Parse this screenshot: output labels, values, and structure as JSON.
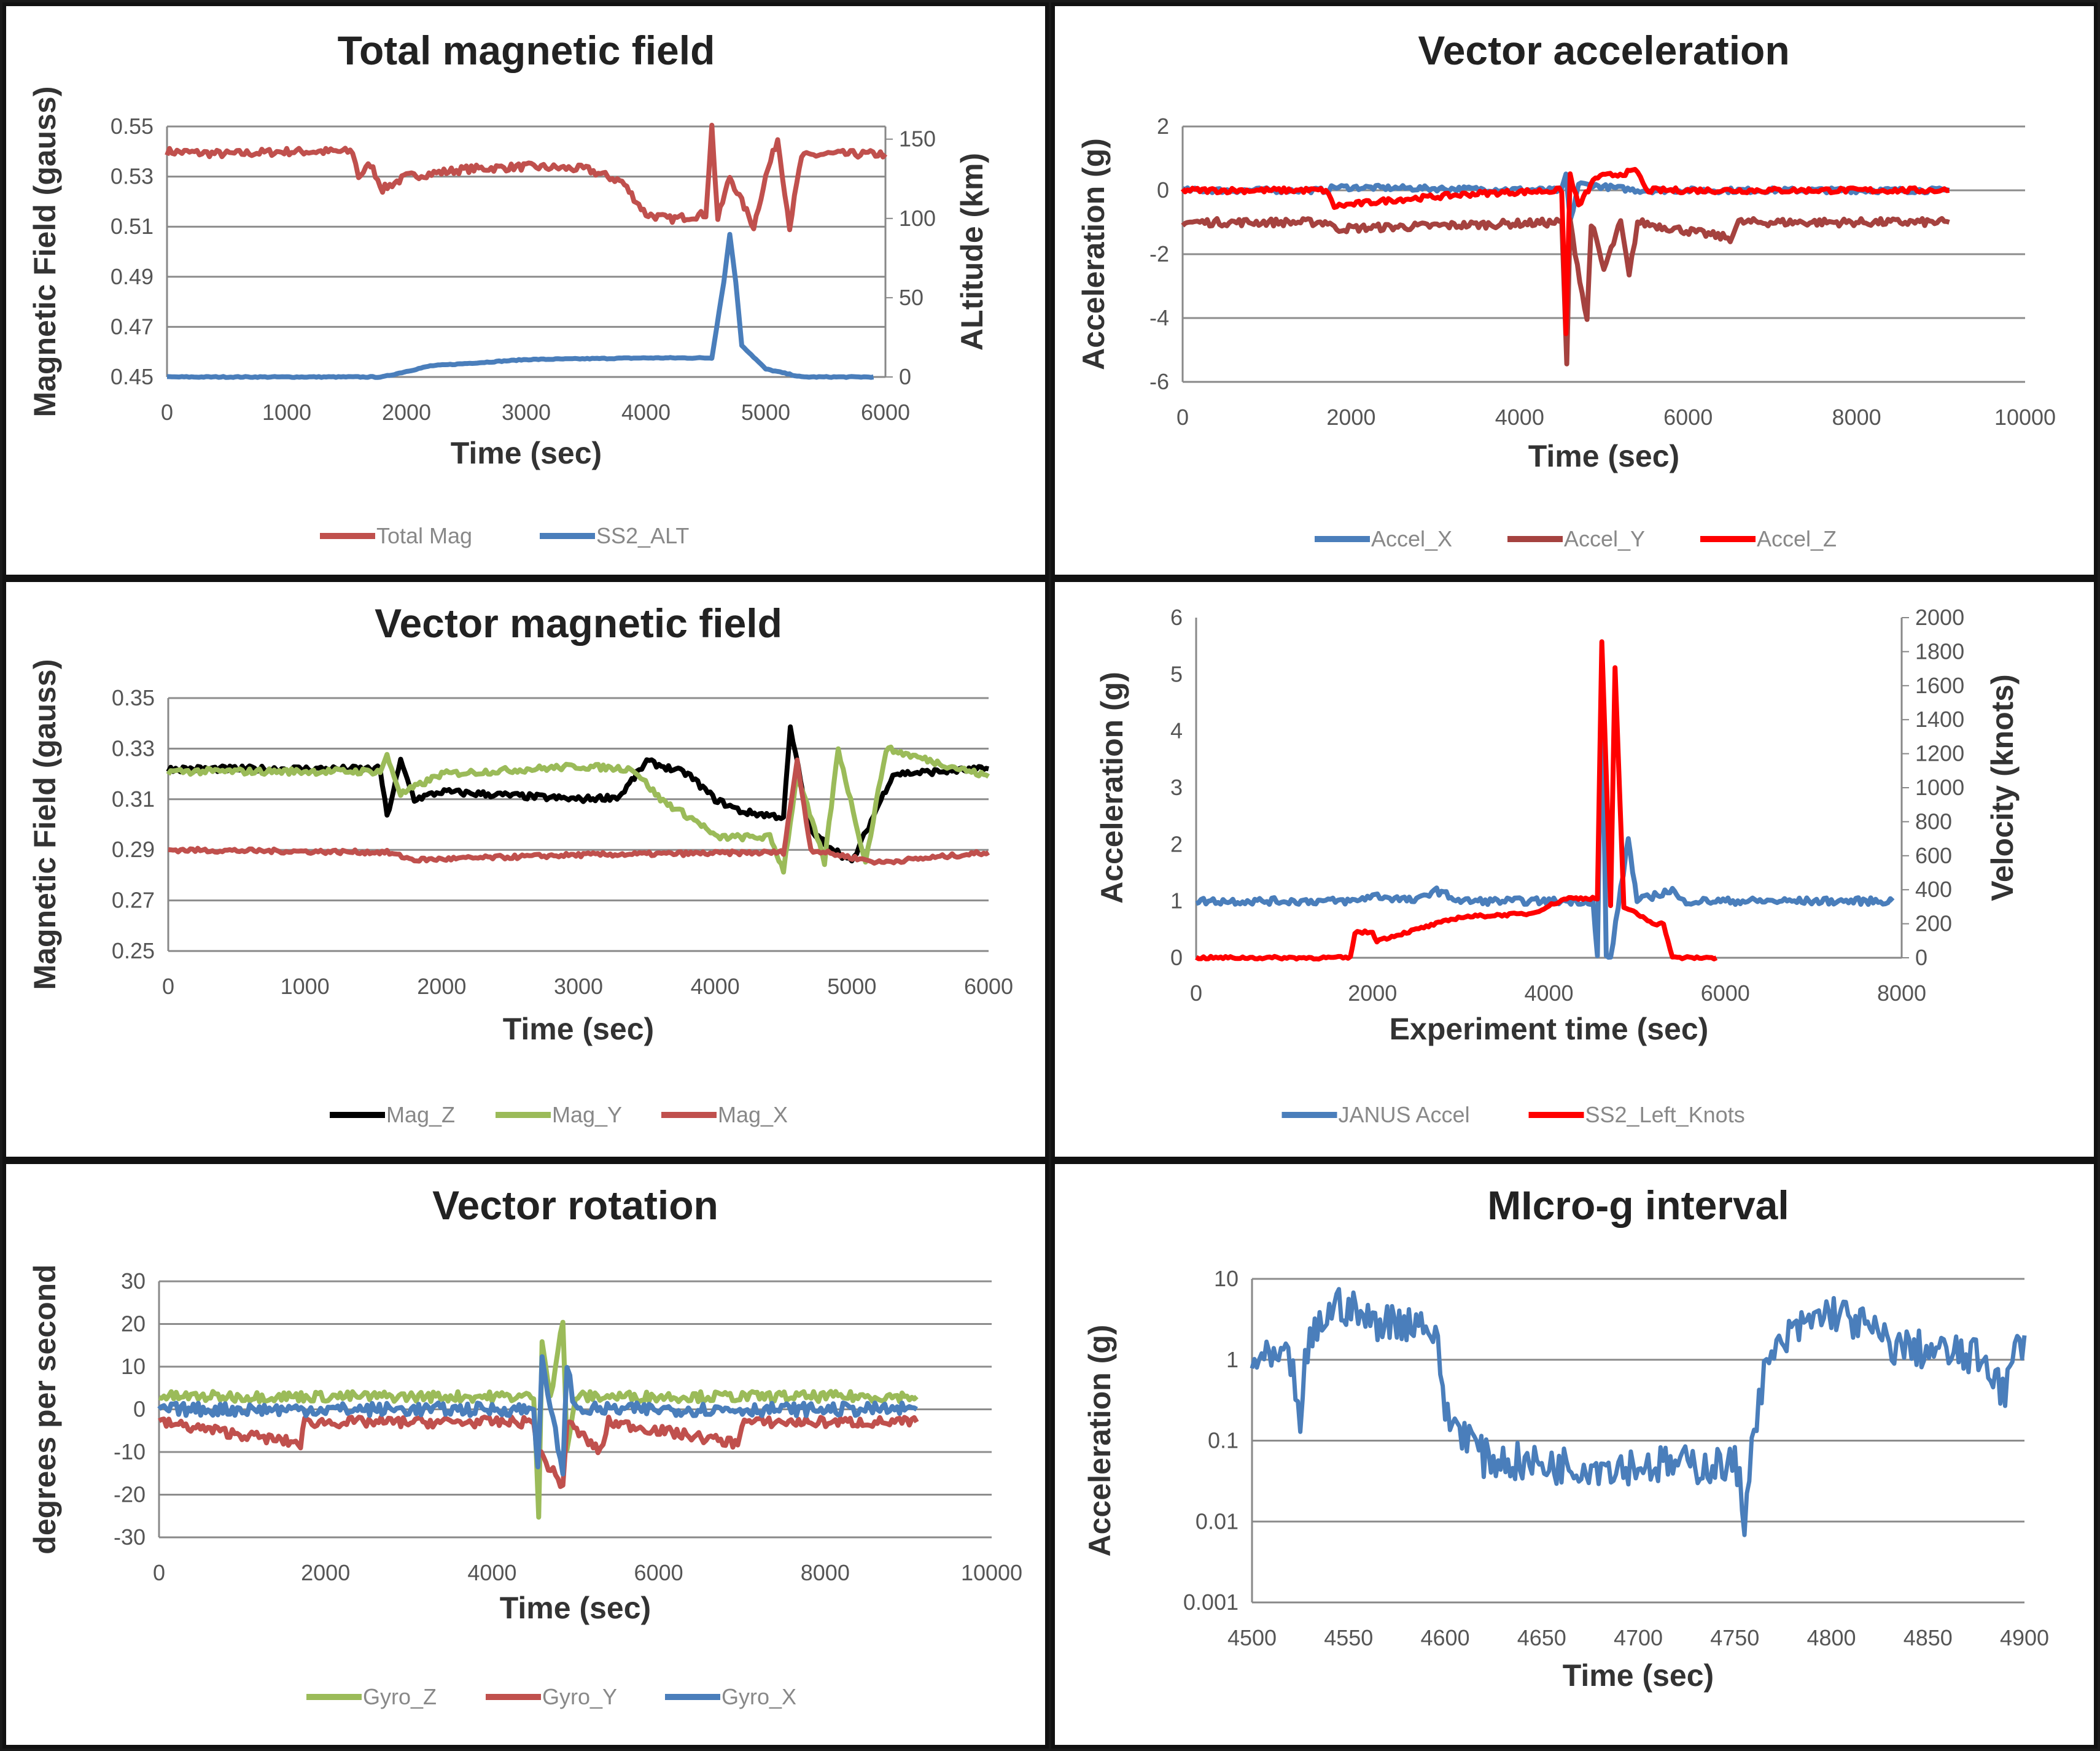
{
  "chart_data": [
    {
      "type": "line",
      "title": "Total magnetic field",
      "xlabel": "Time (sec)",
      "ylabel": "Magnetic Field (gauss)",
      "y2label": "ALtitude (km)",
      "xlim": [
        0,
        6000
      ],
      "ylim": [
        0.45,
        0.55
      ],
      "y2lim": [
        0,
        158
      ],
      "xticks": [
        "0",
        "1000",
        "2000",
        "3000",
        "4000",
        "5000",
        "6000"
      ],
      "yticks": [
        "0.45",
        "0.47",
        "0.49",
        "0.51",
        "0.53",
        "0.55"
      ],
      "y2ticks": [
        "0",
        "50",
        "100",
        "150"
      ],
      "grid": true,
      "legend": "bottom",
      "series": [
        {
          "name": "Total Mag",
          "color": "#c0504d",
          "axis": "left",
          "points": [
            [
              0,
              0.54
            ],
            [
              500,
              0.539
            ],
            [
              1000,
              0.54
            ],
            [
              1550,
              0.54
            ],
            [
              1600,
              0.53
            ],
            [
              1700,
              0.535
            ],
            [
              1800,
              0.525
            ],
            [
              2000,
              0.53
            ],
            [
              2500,
              0.533
            ],
            [
              3000,
              0.534
            ],
            [
              3500,
              0.533
            ],
            [
              3800,
              0.528
            ],
            [
              4000,
              0.515
            ],
            [
              4200,
              0.513
            ],
            [
              4500,
              0.515
            ],
            [
              4550,
              0.55
            ],
            [
              4600,
              0.513
            ],
            [
              4700,
              0.53
            ],
            [
              4800,
              0.52
            ],
            [
              4900,
              0.51
            ],
            [
              5000,
              0.53
            ],
            [
              5100,
              0.545
            ],
            [
              5200,
              0.51
            ],
            [
              5300,
              0.538
            ],
            [
              5500,
              0.539
            ],
            [
              6000,
              0.539
            ]
          ]
        },
        {
          "name": "SS2_ALT",
          "color": "#4a7ebb",
          "axis": "right",
          "points": [
            [
              0,
              0
            ],
            [
              1800,
              0
            ],
            [
              2200,
              7
            ],
            [
              3000,
              11
            ],
            [
              4000,
              12
            ],
            [
              4550,
              12
            ],
            [
              4650,
              60
            ],
            [
              4700,
              90
            ],
            [
              4750,
              60
            ],
            [
              4800,
              20
            ],
            [
              5000,
              5
            ],
            [
              5300,
              0
            ],
            [
              5900,
              0
            ]
          ]
        }
      ]
    },
    {
      "type": "line",
      "title": "Vector acceleration",
      "xlabel": "Time (sec)",
      "ylabel": "Acceleration (g)",
      "xlim": [
        0,
        10000
      ],
      "ylim": [
        -6,
        2
      ],
      "xticks": [
        "0",
        "2000",
        "4000",
        "6000",
        "8000",
        "10000"
      ],
      "yticks": [
        "-6",
        "-4",
        "-2",
        "0",
        "2"
      ],
      "grid": true,
      "legend": "bottom",
      "series": [
        {
          "name": "Accel_X",
          "color": "#4a7ebb",
          "points": [
            [
              0,
              0
            ],
            [
              1700,
              0
            ],
            [
              1800,
              0.1
            ],
            [
              4500,
              0
            ],
            [
              4550,
              0.5
            ],
            [
              4600,
              -1
            ],
            [
              4700,
              0.2
            ],
            [
              5400,
              0
            ],
            [
              9100,
              0
            ]
          ]
        },
        {
          "name": "Accel_Y",
          "color": "#a5423f",
          "points": [
            [
              0,
              -1
            ],
            [
              1750,
              -1
            ],
            [
              1800,
              -1.2
            ],
            [
              4500,
              -1
            ],
            [
              4560,
              -5.4
            ],
            [
              4600,
              -1
            ],
            [
              4800,
              -4.1
            ],
            [
              4850,
              -1
            ],
            [
              5000,
              -2.5
            ],
            [
              5200,
              -1
            ],
            [
              5300,
              -2.7
            ],
            [
              5400,
              -1
            ],
            [
              6500,
              -1.5
            ],
            [
              6600,
              -1
            ],
            [
              9100,
              -1
            ]
          ]
        },
        {
          "name": "Accel_Z",
          "color": "#ff0000",
          "points": [
            [
              0,
              0
            ],
            [
              1700,
              0
            ],
            [
              1800,
              -0.5
            ],
            [
              2500,
              -0.3
            ],
            [
              3500,
              -0.1
            ],
            [
              4500,
              0
            ],
            [
              4550,
              -4.5
            ],
            [
              4600,
              0.5
            ],
            [
              4700,
              -0.5
            ],
            [
              4900,
              0.4
            ],
            [
              5400,
              0.6
            ],
            [
              5500,
              0
            ],
            [
              9100,
              0
            ]
          ]
        }
      ]
    },
    {
      "type": "line",
      "title": "Vector magnetic field",
      "xlabel": "Time (sec)",
      "ylabel": "Magnetic Field (gauss)",
      "xlim": [
        0,
        6000
      ],
      "ylim": [
        0.25,
        0.35
      ],
      "xticks": [
        "0",
        "1000",
        "2000",
        "3000",
        "4000",
        "5000",
        "6000"
      ],
      "yticks": [
        "0.25",
        "0.27",
        "0.29",
        "0.31",
        "0.33",
        "0.35"
      ],
      "grid": true,
      "legend": "bottom",
      "series": [
        {
          "name": "Mag_Z",
          "color": "#000000",
          "points": [
            [
              0,
              0.322
            ],
            [
              1550,
              0.322
            ],
            [
              1600,
              0.303
            ],
            [
              1700,
              0.325
            ],
            [
              1800,
              0.31
            ],
            [
              2000,
              0.313
            ],
            [
              3000,
              0.31
            ],
            [
              3300,
              0.311
            ],
            [
              3500,
              0.325
            ],
            [
              3800,
              0.32
            ],
            [
              4000,
              0.31
            ],
            [
              4200,
              0.305
            ],
            [
              4500,
              0.303
            ],
            [
              4550,
              0.338
            ],
            [
              4700,
              0.297
            ],
            [
              5000,
              0.285
            ],
            [
              5300,
              0.32
            ],
            [
              6000,
              0.322
            ]
          ]
        },
        {
          "name": "Mag_Y",
          "color": "#9bbb59",
          "points": [
            [
              0,
              0.321
            ],
            [
              1550,
              0.321
            ],
            [
              1600,
              0.327
            ],
            [
              1700,
              0.312
            ],
            [
              2000,
              0.32
            ],
            [
              3000,
              0.323
            ],
            [
              3400,
              0.322
            ],
            [
              3600,
              0.31
            ],
            [
              3900,
              0.3
            ],
            [
              4000,
              0.295
            ],
            [
              4400,
              0.295
            ],
            [
              4500,
              0.282
            ],
            [
              4600,
              0.32
            ],
            [
              4800,
              0.285
            ],
            [
              4900,
              0.33
            ],
            [
              5100,
              0.285
            ],
            [
              5250,
              0.33
            ],
            [
              6000,
              0.319
            ]
          ]
        },
        {
          "name": "Mag_X",
          "color": "#c0504d",
          "points": [
            [
              0,
              0.29
            ],
            [
              1600,
              0.289
            ],
            [
              1800,
              0.286
            ],
            [
              3000,
              0.288
            ],
            [
              4500,
              0.289
            ],
            [
              4600,
              0.325
            ],
            [
              4700,
              0.29
            ],
            [
              5200,
              0.285
            ],
            [
              6000,
              0.289
            ]
          ]
        }
      ]
    },
    {
      "type": "line",
      "title": "",
      "xlabel": "Experiment time (sec)",
      "ylabel": "Acceleration (g)",
      "y2label": "Velocity (knots)",
      "xlim": [
        0,
        8000
      ],
      "ylim": [
        0,
        6
      ],
      "y2lim": [
        0,
        2000
      ],
      "xticks": [
        "0",
        "2000",
        "4000",
        "6000",
        "8000"
      ],
      "yticks": [
        "0",
        "1",
        "2",
        "3",
        "4",
        "5",
        "6"
      ],
      "y2ticks": [
        "0",
        "200",
        "400",
        "600",
        "800",
        "1000",
        "1200",
        "1400",
        "1600",
        "1800",
        "2000"
      ],
      "grid": false,
      "legend": "bottom",
      "series": [
        {
          "name": "JANUS Accel",
          "color": "#4a7ebb",
          "axis": "left",
          "points": [
            [
              0,
              1
            ],
            [
              1800,
              1
            ],
            [
              2000,
              1.1
            ],
            [
              2500,
              1
            ],
            [
              2700,
              1.2
            ],
            [
              3000,
              1
            ],
            [
              4500,
              1
            ],
            [
              4550,
              0
            ],
            [
              4600,
              5
            ],
            [
              4650,
              0
            ],
            [
              4700,
              0
            ],
            [
              4900,
              2.1
            ],
            [
              5000,
              1
            ],
            [
              5400,
              1.2
            ],
            [
              5500,
              1
            ],
            [
              7900,
              1
            ]
          ]
        },
        {
          "name": "SS2_Left_Knots",
          "color": "#ff0000",
          "axis": "right",
          "points": [
            [
              0,
              0
            ],
            [
              1750,
              0
            ],
            [
              1800,
              150
            ],
            [
              2000,
              150
            ],
            [
              2050,
              100
            ],
            [
              3000,
              240
            ],
            [
              3800,
              260
            ],
            [
              4200,
              350
            ],
            [
              4550,
              350
            ],
            [
              4600,
              1860
            ],
            [
              4700,
              300
            ],
            [
              4750,
              1700
            ],
            [
              4850,
              300
            ],
            [
              5200,
              200
            ],
            [
              5300,
              200
            ],
            [
              5400,
              0
            ],
            [
              5900,
              0
            ]
          ]
        }
      ]
    },
    {
      "type": "line",
      "title": "Vector rotation",
      "xlabel": "Time (sec)",
      "ylabel": "degrees per second",
      "xlim": [
        0,
        10000
      ],
      "ylim": [
        -30,
        30
      ],
      "xticks": [
        "0",
        "2000",
        "4000",
        "6000",
        "8000",
        "10000"
      ],
      "yticks": [
        "-30",
        "-20",
        "-10",
        "0",
        "10",
        "20",
        "30"
      ],
      "grid": true,
      "legend": "bottom",
      "series": [
        {
          "name": "Gyro_Z",
          "color": "#9bbb59",
          "points": [
            [
              0,
              3
            ],
            [
              4500,
              3
            ],
            [
              4560,
              -25
            ],
            [
              4600,
              17
            ],
            [
              4700,
              3
            ],
            [
              4850,
              21
            ],
            [
              4900,
              -10
            ],
            [
              5000,
              3
            ],
            [
              9100,
              3
            ]
          ]
        },
        {
          "name": "Gyro_Y",
          "color": "#c0504d",
          "points": [
            [
              0,
              -3
            ],
            [
              1700,
              -8
            ],
            [
              1750,
              -3
            ],
            [
              4500,
              -3
            ],
            [
              4560,
              -10
            ],
            [
              4850,
              -18
            ],
            [
              4900,
              -3
            ],
            [
              5300,
              -10
            ],
            [
              5400,
              -3
            ],
            [
              6950,
              -8
            ],
            [
              7000,
              -3
            ],
            [
              9100,
              -3
            ]
          ]
        },
        {
          "name": "Gyro_X",
          "color": "#4a7ebb",
          "points": [
            [
              0,
              0
            ],
            [
              4500,
              0
            ],
            [
              4550,
              -13
            ],
            [
              4600,
              11
            ],
            [
              4700,
              0
            ],
            [
              4850,
              -14
            ],
            [
              4900,
              10
            ],
            [
              5000,
              0
            ],
            [
              9100,
              0
            ]
          ]
        }
      ]
    },
    {
      "type": "line",
      "title": "MIcro-g interval",
      "xlabel": "Time (sec)",
      "ylabel": "Acceleration (g)",
      "xlim": [
        4500,
        4900
      ],
      "ylim": [
        0.001,
        10
      ],
      "yscale": "log",
      "xticks": [
        "4500",
        "4550",
        "4600",
        "4650",
        "4700",
        "4750",
        "4800",
        "4850",
        "4900"
      ],
      "yticks": [
        "0.001",
        "0.01",
        "0.1",
        "1",
        "10"
      ],
      "grid": true,
      "series": [
        {
          "name": "",
          "color": "#4a7ebb",
          "points": [
            [
              4500,
              1
            ],
            [
              4520,
              0.9
            ],
            [
              4525,
              0.08
            ],
            [
              4530,
              1.5
            ],
            [
              4545,
              5
            ],
            [
              4560,
              3
            ],
            [
              4590,
              3
            ],
            [
              4600,
              0.2
            ],
            [
              4620,
              0.06
            ],
            [
              4650,
              0.05
            ],
            [
              4700,
              0.05
            ],
            [
              4750,
              0.05
            ],
            [
              4755,
              0.008
            ],
            [
              4760,
              0.1
            ],
            [
              4800,
              4
            ],
            [
              4830,
              1.5
            ],
            [
              4880,
              1
            ],
            [
              4890,
              0.3
            ],
            [
              4900,
              2
            ]
          ]
        }
      ]
    }
  ]
}
